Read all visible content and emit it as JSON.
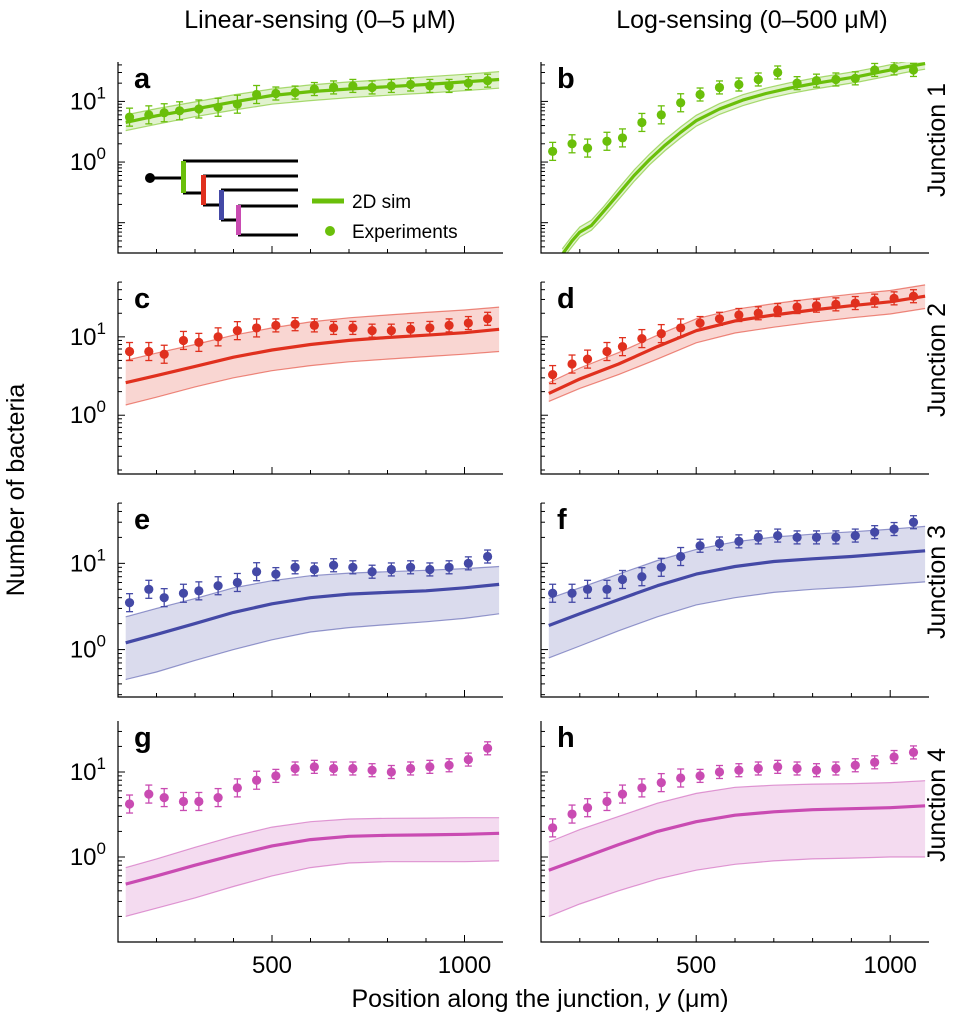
{
  "figure": {
    "column_titles": [
      "Linear-sensing (0–5 μM)",
      "Log-sensing (0–500 μM)"
    ],
    "row_titles": [
      "Junction 1",
      "Junction 2",
      "Junction 3",
      "Junction 4"
    ],
    "ylabel": "Number of bacteria",
    "xlabel": "Position along the junction, y (μm)",
    "xlabel_parts": {
      "prefix": "Position along the junction, ",
      "var": "y",
      "suffix": " (μm)"
    },
    "legend": {
      "sim_label": "2D sim",
      "exp_label": "Experiments"
    },
    "colors": {
      "j1": "#6abf0a",
      "j2": "#e0301e",
      "j3": "#4449a6",
      "j4": "#c94bb2",
      "black": "#000000"
    }
  },
  "chart_data": [
    {
      "panel": "a",
      "type": "line",
      "column": "Linear-sensing (0–5 μM)",
      "row": "Junction 1",
      "xlim": [
        100,
        1100
      ],
      "ylim_log10": [
        -1.5,
        1.65
      ],
      "xticks": [
        500,
        1000
      ],
      "yticks": [
        {
          "label": "10",
          "exp": "1",
          "value": 10
        },
        {
          "label": "10",
          "exp": "0",
          "value": 1
        }
      ],
      "sim_x": [
        120,
        200,
        300,
        400,
        500,
        600,
        700,
        800,
        900,
        1000,
        1090
      ],
      "sim_y": [
        4.5,
        5.8,
        7.5,
        9.8,
        12.5,
        14.5,
        16,
        17.5,
        19,
        21,
        23
      ],
      "band_low": [
        3.3,
        4.2,
        5.6,
        7.2,
        9,
        10.3,
        11.5,
        12.6,
        13.7,
        15,
        16.5
      ],
      "band_high": [
        6,
        7.6,
        9.8,
        12.8,
        16,
        18.7,
        21,
        23,
        25.5,
        28,
        31
      ],
      "exp_x": [
        130,
        180,
        220,
        260,
        310,
        360,
        410,
        460,
        510,
        560,
        610,
        660,
        710,
        760,
        810,
        860,
        910,
        960,
        1010,
        1060
      ],
      "exp_y": [
        5.5,
        6,
        6.5,
        7,
        7.5,
        8,
        9,
        13,
        13.5,
        14,
        16,
        17,
        18,
        17,
        18,
        19,
        18,
        18,
        20,
        22
      ]
    },
    {
      "panel": "b",
      "type": "line",
      "column": "Log-sensing (0–500 μM)",
      "row": "Junction 1",
      "xlim": [
        100,
        1100
      ],
      "ylim_log10": [
        -1.5,
        1.65
      ],
      "xticks": [
        500,
        1000
      ],
      "yticks": [],
      "sim_x": [
        155,
        180,
        200,
        230,
        260,
        300,
        340,
        380,
        420,
        460,
        500,
        560,
        620,
        680,
        740,
        800,
        860,
        920,
        980,
        1040,
        1090
      ],
      "sim_y": [
        0.03,
        0.05,
        0.07,
        0.09,
        0.15,
        0.3,
        0.6,
        1.1,
        1.9,
        3.1,
        4.8,
        7.5,
        10.5,
        13.5,
        16.5,
        19.5,
        22.5,
        26,
        31,
        37,
        42
      ],
      "band_low": [
        0.025,
        0.04,
        0.058,
        0.075,
        0.12,
        0.24,
        0.48,
        0.9,
        1.55,
        2.5,
        3.9,
        6.1,
        8.5,
        11,
        13.4,
        15.8,
        18.2,
        21,
        25,
        30,
        34
      ],
      "band_high": [
        0.037,
        0.06,
        0.085,
        0.11,
        0.18,
        0.37,
        0.74,
        1.36,
        2.35,
        3.8,
        5.9,
        9.2,
        12.9,
        16.6,
        20.3,
        24,
        27.7,
        32,
        38,
        45.5,
        51.5
      ],
      "exp_x": [
        130,
        180,
        220,
        270,
        310,
        360,
        410,
        460,
        510,
        560,
        610,
        660,
        710,
        760,
        810,
        860,
        910,
        960,
        1010,
        1060
      ],
      "exp_y": [
        1.5,
        2,
        1.7,
        2.2,
        2.5,
        4.5,
        6,
        9.5,
        13,
        17,
        19,
        23,
        30,
        20,
        22,
        23,
        24,
        33,
        35,
        33
      ]
    },
    {
      "panel": "c",
      "type": "line",
      "column": "Linear-sensing (0–5 μM)",
      "row": "Junction 2",
      "xlim": [
        100,
        1100
      ],
      "ylim_log10": [
        -0.75,
        1.7
      ],
      "xticks": [
        500,
        1000
      ],
      "yticks": [
        {
          "label": "10",
          "exp": "1",
          "value": 10
        },
        {
          "label": "10",
          "exp": "0",
          "value": 1
        }
      ],
      "sim_x": [
        120,
        200,
        300,
        400,
        500,
        600,
        700,
        800,
        900,
        1000,
        1090
      ],
      "sim_y": [
        2.6,
        3.2,
        4.2,
        5.5,
        6.8,
        8,
        9,
        9.8,
        10.5,
        11.3,
        12.5
      ],
      "band_low": [
        1.35,
        1.7,
        2.3,
        3,
        3.7,
        4.3,
        4.8,
        5.2,
        5.6,
        6,
        6.5
      ],
      "band_high": [
        5,
        6.2,
        8,
        10.5,
        13,
        15.5,
        17.5,
        19,
        20.5,
        22,
        24
      ],
      "exp_x": [
        130,
        180,
        220,
        270,
        310,
        360,
        410,
        460,
        510,
        560,
        610,
        660,
        710,
        760,
        810,
        860,
        910,
        960,
        1010,
        1060
      ],
      "exp_y": [
        6.5,
        6.5,
        6,
        9,
        8.5,
        10,
        12,
        13,
        14,
        14.5,
        14,
        13,
        13,
        12,
        12,
        12.5,
        13,
        14,
        15,
        17
      ]
    },
    {
      "panel": "d",
      "type": "line",
      "column": "Log-sensing (0–500 μM)",
      "row": "Junction 2",
      "xlim": [
        100,
        1100
      ],
      "ylim_log10": [
        -0.75,
        1.7
      ],
      "xticks": [
        500,
        1000
      ],
      "yticks": [],
      "sim_x": [
        120,
        200,
        300,
        400,
        500,
        600,
        700,
        800,
        900,
        1000,
        1090
      ],
      "sim_y": [
        1.9,
        2.9,
        4.5,
        7.5,
        12,
        16,
        19,
        22,
        25,
        28,
        33
      ],
      "band_low": [
        1.5,
        2.2,
        3.3,
        5.2,
        8.4,
        11.2,
        13.3,
        15.4,
        17.5,
        19.6,
        23
      ],
      "band_high": [
        2.6,
        4,
        6.3,
        10.5,
        17,
        22.5,
        26.6,
        30.8,
        35,
        39,
        46
      ],
      "exp_x": [
        130,
        180,
        220,
        270,
        310,
        360,
        410,
        460,
        510,
        560,
        610,
        660,
        710,
        760,
        810,
        860,
        910,
        960,
        1010,
        1060
      ],
      "exp_y": [
        3.3,
        4.5,
        5.2,
        6.5,
        7.5,
        9.5,
        11,
        13,
        15,
        17,
        19,
        20,
        22,
        24,
        25,
        26,
        27,
        29,
        31,
        33
      ]
    },
    {
      "panel": "e",
      "type": "line",
      "column": "Linear-sensing (0–5 μM)",
      "row": "Junction 3",
      "xlim": [
        100,
        1100
      ],
      "ylim_log10": [
        -0.55,
        1.7
      ],
      "xticks": [
        500,
        1000
      ],
      "yticks": [
        {
          "label": "10",
          "exp": "1",
          "value": 10
        },
        {
          "label": "10",
          "exp": "0",
          "value": 1
        }
      ],
      "sim_x": [
        120,
        200,
        300,
        400,
        500,
        600,
        700,
        800,
        900,
        1000,
        1090
      ],
      "sim_y": [
        1.2,
        1.5,
        2,
        2.7,
        3.4,
        4,
        4.4,
        4.6,
        4.8,
        5.2,
        5.7
      ],
      "band_low": [
        0.45,
        0.55,
        0.75,
        1,
        1.3,
        1.6,
        1.8,
        1.95,
        2.1,
        2.3,
        2.6
      ],
      "band_high": [
        2.4,
        3,
        3.9,
        5.2,
        6.3,
        7.2,
        7.7,
        8,
        8.3,
        8.7,
        9.2
      ],
      "exp_x": [
        130,
        180,
        220,
        270,
        310,
        360,
        410,
        460,
        510,
        560,
        610,
        660,
        710,
        760,
        810,
        860,
        910,
        960,
        1010,
        1060
      ],
      "exp_y": [
        3.5,
        5,
        4,
        4.5,
        4.8,
        5.5,
        6,
        8,
        7.5,
        9,
        8.5,
        9.5,
        9,
        8,
        8.5,
        9,
        8.5,
        9,
        10,
        12
      ]
    },
    {
      "panel": "f",
      "type": "line",
      "column": "Log-sensing (0–500 μM)",
      "row": "Junction 3",
      "xlim": [
        100,
        1100
      ],
      "ylim_log10": [
        -0.55,
        1.7
      ],
      "xticks": [
        500,
        1000
      ],
      "yticks": [],
      "sim_x": [
        120,
        200,
        300,
        400,
        500,
        600,
        700,
        800,
        900,
        1000,
        1090
      ],
      "sim_y": [
        1.9,
        2.6,
        3.8,
        5.5,
        7.5,
        9.2,
        10.5,
        11.3,
        12,
        13,
        14
      ],
      "band_low": [
        0.8,
        1.1,
        1.65,
        2.4,
        3.3,
        4,
        4.6,
        5,
        5.3,
        5.7,
        6.1
      ],
      "band_high": [
        3.9,
        5.2,
        7.5,
        10.8,
        14.5,
        17.8,
        20.2,
        21.8,
        23.2,
        24.9,
        26.8
      ],
      "exp_x": [
        130,
        180,
        220,
        270,
        310,
        360,
        410,
        460,
        510,
        560,
        610,
        660,
        710,
        760,
        810,
        860,
        910,
        960,
        1010,
        1060
      ],
      "exp_y": [
        4.5,
        4.5,
        5,
        5,
        6.5,
        7,
        9,
        12,
        16,
        17,
        18,
        20,
        21,
        20,
        20,
        20,
        21,
        23,
        25,
        30
      ]
    },
    {
      "panel": "g",
      "type": "line",
      "column": "Linear-sensing (0–5 μM)",
      "row": "Junction 4",
      "xlim": [
        100,
        1100
      ],
      "ylim_log10": [
        -1.0,
        1.6
      ],
      "xticks": [
        500,
        1000
      ],
      "yticks": [
        {
          "label": "10",
          "exp": "1",
          "value": 10
        },
        {
          "label": "10",
          "exp": "0",
          "value": 1
        }
      ],
      "sim_x": [
        120,
        200,
        300,
        400,
        500,
        600,
        700,
        800,
        900,
        1000,
        1090
      ],
      "sim_y": [
        0.48,
        0.6,
        0.8,
        1.05,
        1.35,
        1.6,
        1.75,
        1.8,
        1.82,
        1.85,
        1.9
      ],
      "band_low": [
        0.2,
        0.25,
        0.33,
        0.45,
        0.6,
        0.75,
        0.85,
        0.88,
        0.88,
        0.88,
        0.9
      ],
      "band_high": [
        0.75,
        0.95,
        1.3,
        1.75,
        2.25,
        2.6,
        2.8,
        2.85,
        2.87,
        2.9,
        2.9
      ],
      "exp_x": [
        130,
        180,
        220,
        270,
        310,
        360,
        410,
        460,
        510,
        560,
        610,
        660,
        710,
        760,
        810,
        860,
        910,
        960,
        1010,
        1060
      ],
      "exp_y": [
        4.2,
        5.5,
        5,
        4.5,
        4.5,
        5,
        6.5,
        8,
        9,
        11,
        11.5,
        11,
        11,
        10.5,
        10,
        11,
        11.5,
        12,
        14,
        19
      ]
    },
    {
      "panel": "h",
      "type": "line",
      "column": "Log-sensing (0–500 μM)",
      "row": "Junction 4",
      "xlim": [
        100,
        1100
      ],
      "ylim_log10": [
        -1.0,
        1.6
      ],
      "xticks": [
        500,
        1000
      ],
      "yticks": [],
      "sim_x": [
        120,
        200,
        300,
        400,
        500,
        600,
        700,
        800,
        900,
        1000,
        1090
      ],
      "sim_y": [
        0.7,
        0.95,
        1.4,
        2,
        2.6,
        3.1,
        3.4,
        3.6,
        3.7,
        3.8,
        4
      ],
      "band_low": [
        0.2,
        0.28,
        0.4,
        0.55,
        0.7,
        0.82,
        0.9,
        0.95,
        0.97,
        1,
        1
      ],
      "band_high": [
        1.5,
        2.1,
        3,
        4.3,
        5.6,
        6.6,
        7,
        7.2,
        7.3,
        7.5,
        7.9
      ],
      "exp_x": [
        130,
        180,
        220,
        270,
        310,
        360,
        410,
        460,
        510,
        560,
        610,
        660,
        710,
        760,
        810,
        860,
        910,
        960,
        1010,
        1060
      ],
      "exp_y": [
        2.2,
        3.2,
        3.8,
        4.5,
        5.5,
        6.5,
        7.5,
        8.5,
        9,
        10,
        10.5,
        11,
        11.5,
        11,
        10.5,
        11,
        12,
        13,
        15,
        17
      ]
    }
  ]
}
